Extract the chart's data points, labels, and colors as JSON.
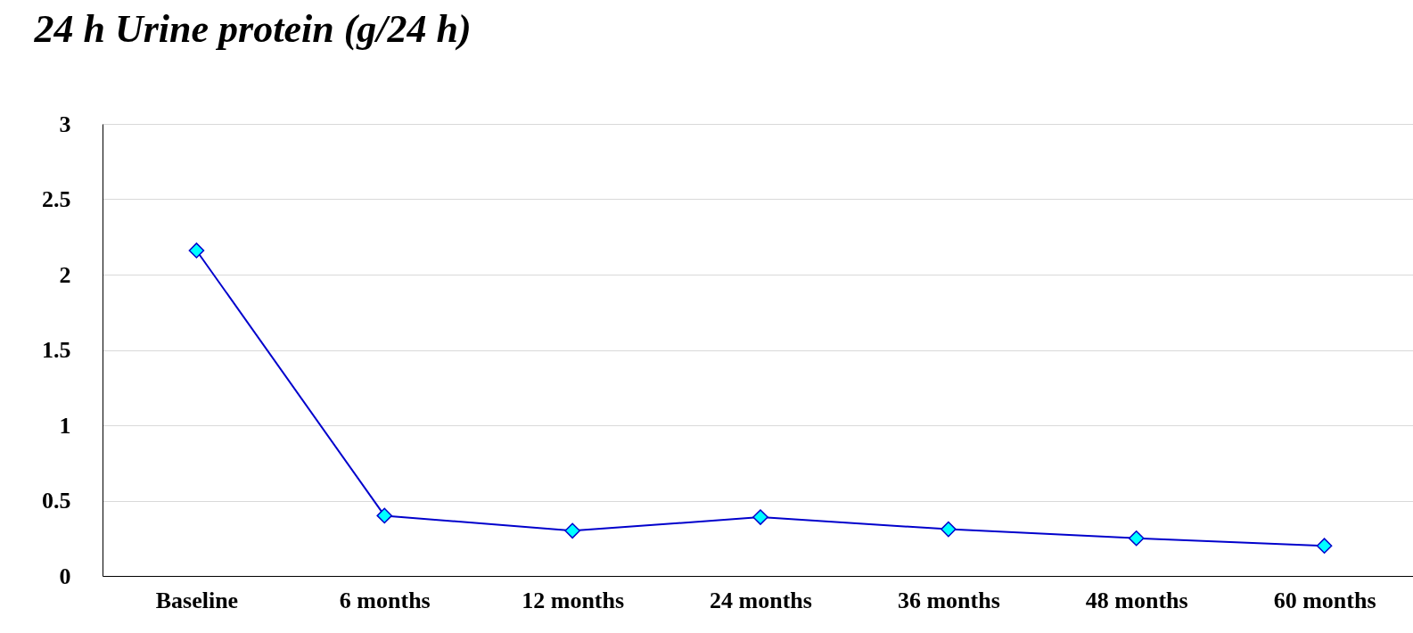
{
  "chart_data": {
    "type": "line",
    "title": "24 h Urine protein (g/24 h)",
    "categories": [
      "Baseline",
      "6 months",
      "12 months",
      "24 months",
      "36 months",
      "48 months",
      "60 months"
    ],
    "series": [
      {
        "color": "#0000cc",
        "values": [
          2.16,
          0.4,
          0.3,
          0.39,
          0.31,
          0.25,
          0.2
        ]
      }
    ],
    "ylim": [
      0,
      3
    ],
    "yticks": [
      0,
      0.5,
      1,
      1.5,
      2,
      2.5,
      3
    ],
    "grid": "y",
    "marker": "diamond",
    "line_style": "solid"
  }
}
